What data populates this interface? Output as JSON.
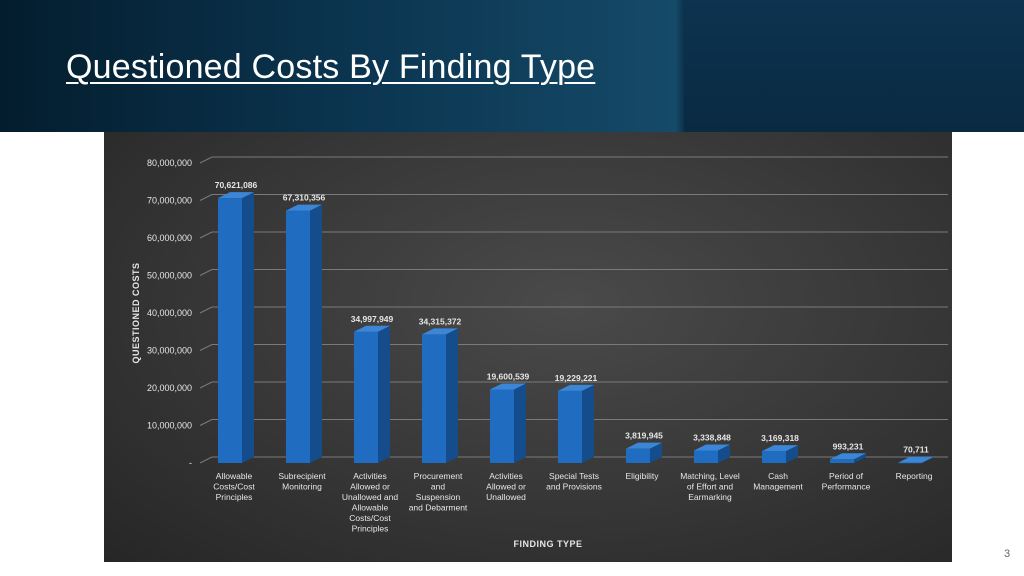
{
  "slide": {
    "title": "Questioned Costs By Finding Type",
    "number": "3"
  },
  "colors": {
    "bar_front": "#1f6cc0",
    "bar_side": "#154c8c",
    "bar_top": "#3b86d6",
    "grid": "#7a7a7a",
    "label": "#e6e6e6"
  },
  "chart_data": {
    "type": "bar",
    "title": "",
    "xlabel": "FINDING TYPE",
    "ylabel": "QUESTIONED COSTS",
    "ylim": [
      0,
      80000000
    ],
    "y_ticks": [
      "-",
      "10,000,000",
      "20,000,000",
      "30,000,000",
      "40,000,000",
      "50,000,000",
      "60,000,000",
      "70,000,000",
      "80,000,000"
    ],
    "grid": true,
    "categories": [
      [
        "Allowable",
        "Costs/Cost",
        "Principles"
      ],
      [
        "Subrecipient",
        "Monitoring"
      ],
      [
        "Activities",
        "Allowed or",
        "Unallowed and",
        "Allowable",
        "Costs/Cost",
        "Principles"
      ],
      [
        "Procurement",
        "and",
        "Suspension",
        "and Debarment"
      ],
      [
        "Activities",
        "Allowed or",
        "Unallowed"
      ],
      [
        "Special Tests",
        "and Provisions"
      ],
      [
        "Eligibility"
      ],
      [
        "Matching, Level",
        "of Effort and",
        "Earmarking"
      ],
      [
        "Cash",
        "Management"
      ],
      [
        "Period of",
        "Performance"
      ],
      [
        "Reporting"
      ]
    ],
    "values": [
      70621086,
      67310356,
      34997949,
      34315372,
      19600539,
      19229221,
      3819945,
      3338848,
      3169318,
      993231,
      70711
    ],
    "data_labels": [
      "70,621,086",
      "67,310,356",
      "34,997,949",
      "34,315,372",
      "19,600,539",
      "19,229,221",
      "3,819,945",
      "3,338,848",
      "3,169,318",
      "993,231",
      "70,711"
    ]
  }
}
